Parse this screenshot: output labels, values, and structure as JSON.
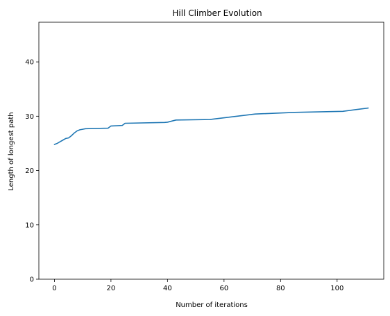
{
  "chart_data": {
    "type": "line",
    "title": "Hill Climber Evolution",
    "xlabel": "Number of iterations",
    "ylabel": "Length of longest path",
    "xlim": [
      -5.5,
      116.5
    ],
    "ylim": [
      0,
      47.3
    ],
    "xticks": [
      0,
      20,
      40,
      60,
      80,
      100
    ],
    "yticks": [
      0,
      10,
      20,
      30,
      40
    ],
    "grid": false,
    "line_color": "#1f77b4",
    "series": [
      {
        "x": [
          0,
          1,
          2,
          3,
          4,
          5,
          6,
          7,
          8,
          9,
          10,
          11,
          19,
          20,
          24,
          25,
          39,
          40,
          43,
          55,
          71,
          85,
          102,
          111
        ],
        "values": [
          24.8,
          25.0,
          25.3,
          25.6,
          25.9,
          26.0,
          26.4,
          26.9,
          27.3,
          27.5,
          27.6,
          27.7,
          27.8,
          28.2,
          28.3,
          28.7,
          28.85,
          28.9,
          29.3,
          29.4,
          30.4,
          30.7,
          30.9,
          31.5
        ]
      }
    ]
  }
}
